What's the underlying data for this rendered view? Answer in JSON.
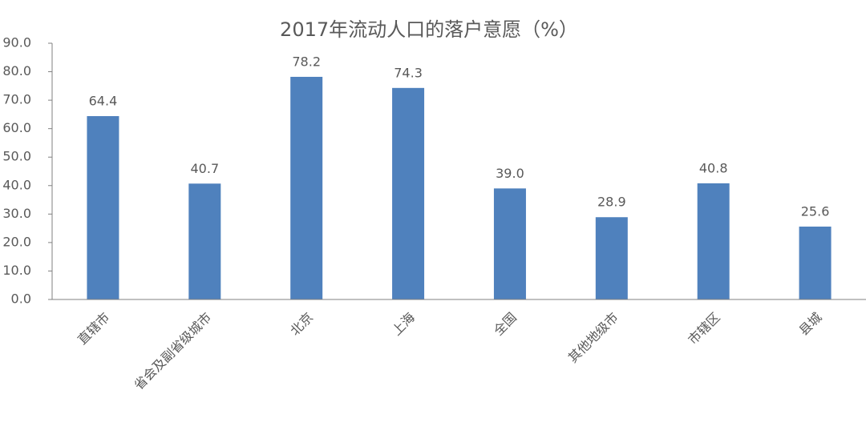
{
  "chart_data": {
    "type": "bar",
    "title": "2017年流动人口的落户意愿（%）",
    "categories": [
      "直辖市",
      "省会及副省级城市",
      "北京",
      "上海",
      "全国",
      "其他地级市",
      "市辖区",
      "县城"
    ],
    "values": [
      64.4,
      40.7,
      78.2,
      74.3,
      39.0,
      28.9,
      40.8,
      25.6
    ],
    "value_labels": [
      "64.4",
      "40.7",
      "78.2",
      "74.3",
      "39.0",
      "28.9",
      "40.8",
      "25.6"
    ],
    "color": "#4f81bd",
    "ylim": [
      0,
      90
    ],
    "yticks": [
      {
        "value": 0,
        "label": "0.0"
      },
      {
        "value": 10,
        "label": "10.0"
      },
      {
        "value": 20,
        "label": "20.0"
      },
      {
        "value": 30,
        "label": "30.0"
      },
      {
        "value": 40,
        "label": "40.0"
      },
      {
        "value": 50,
        "label": "50.0"
      },
      {
        "value": 60,
        "label": "60.0"
      },
      {
        "value": 70,
        "label": "70.0"
      },
      {
        "value": 80,
        "label": "80.0"
      },
      {
        "value": 90,
        "label": "90.0"
      }
    ],
    "grid": false
  }
}
